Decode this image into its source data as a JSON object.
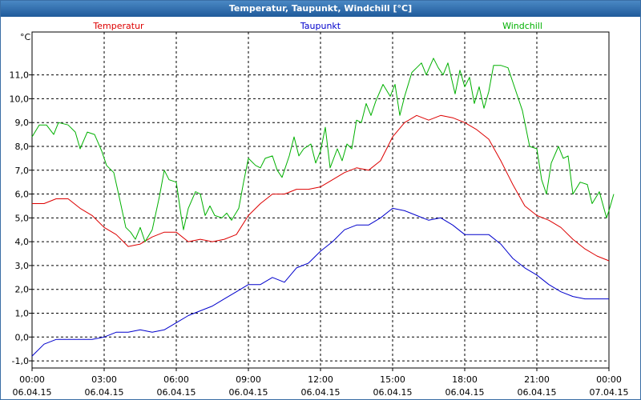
{
  "window": {
    "title": "Temperatur, Taupunkt, Windchill [°C]"
  },
  "chart_data": {
    "type": "line",
    "title": "Temperatur, Taupunkt, Windchill [°C]",
    "y_unit_label": "°C",
    "ylim": [
      -1.3,
      12.8
    ],
    "xlim": [
      0,
      24
    ],
    "grid": true,
    "legend_placement": "top",
    "y_ticks": [
      -1.0,
      0.0,
      1.0,
      2.0,
      3.0,
      4.0,
      5.0,
      6.0,
      7.0,
      8.0,
      9.0,
      10.0,
      11.0
    ],
    "y_tick_labels": [
      "-1,0",
      "0,0",
      "1,0",
      "2,0",
      "3,0",
      "4,0",
      "5,0",
      "6,0",
      "7,0",
      "8,0",
      "9,0",
      "10,0",
      "11,0"
    ],
    "x_ticks": [
      {
        "h": 0,
        "time": "00:00",
        "date": "06.04.15"
      },
      {
        "h": 3,
        "time": "03:00",
        "date": "06.04.15"
      },
      {
        "h": 6,
        "time": "06:00",
        "date": "06.04.15"
      },
      {
        "h": 9,
        "time": "09:00",
        "date": "06.04.15"
      },
      {
        "h": 12,
        "time": "12:00",
        "date": "06.04.15"
      },
      {
        "h": 15,
        "time": "15:00",
        "date": "06.04.15"
      },
      {
        "h": 18,
        "time": "18:00",
        "date": "06.04.15"
      },
      {
        "h": 21,
        "time": "21:00",
        "date": "06.04.15"
      },
      {
        "h": 24,
        "time": "00:00",
        "date": "07.04.15"
      }
    ],
    "series": [
      {
        "name": "Temperatur",
        "color": "#dd0000",
        "points": [
          [
            0,
            5.6
          ],
          [
            0.5,
            5.6
          ],
          [
            1,
            5.8
          ],
          [
            1.5,
            5.8
          ],
          [
            2,
            5.4
          ],
          [
            2.5,
            5.1
          ],
          [
            3,
            4.6
          ],
          [
            3.5,
            4.3
          ],
          [
            4,
            3.8
          ],
          [
            4.5,
            3.9
          ],
          [
            5,
            4.2
          ],
          [
            5.5,
            4.4
          ],
          [
            6,
            4.4
          ],
          [
            6.5,
            4.0
          ],
          [
            7,
            4.1
          ],
          [
            7.5,
            4.0
          ],
          [
            8,
            4.1
          ],
          [
            8.5,
            4.3
          ],
          [
            9,
            5.1
          ],
          [
            9.5,
            5.6
          ],
          [
            10,
            6.0
          ],
          [
            10.5,
            6.0
          ],
          [
            11,
            6.2
          ],
          [
            11.5,
            6.2
          ],
          [
            12,
            6.3
          ],
          [
            12.5,
            6.6
          ],
          [
            13,
            6.9
          ],
          [
            13.5,
            7.1
          ],
          [
            14,
            7.0
          ],
          [
            14.5,
            7.4
          ],
          [
            15,
            8.4
          ],
          [
            15.5,
            9.0
          ],
          [
            16,
            9.3
          ],
          [
            16.5,
            9.1
          ],
          [
            17,
            9.3
          ],
          [
            17.5,
            9.2
          ],
          [
            18,
            9.0
          ],
          [
            18.5,
            8.7
          ],
          [
            19,
            8.3
          ],
          [
            19.5,
            7.4
          ],
          [
            20,
            6.4
          ],
          [
            20.5,
            5.5
          ],
          [
            21,
            5.1
          ],
          [
            21.5,
            4.9
          ],
          [
            22,
            4.6
          ],
          [
            22.5,
            4.1
          ],
          [
            23,
            3.7
          ],
          [
            23.5,
            3.4
          ],
          [
            24,
            3.2
          ]
        ]
      },
      {
        "name": "Taupunkt",
        "color": "#0000cc",
        "points": [
          [
            0,
            -0.8
          ],
          [
            0.5,
            -0.3
          ],
          [
            1,
            -0.1
          ],
          [
            1.5,
            -0.1
          ],
          [
            2,
            -0.1
          ],
          [
            2.5,
            -0.1
          ],
          [
            3,
            0.0
          ],
          [
            3.5,
            0.2
          ],
          [
            4,
            0.2
          ],
          [
            4.5,
            0.3
          ],
          [
            5,
            0.2
          ],
          [
            5.5,
            0.3
          ],
          [
            6,
            0.6
          ],
          [
            6.5,
            0.9
          ],
          [
            7,
            1.1
          ],
          [
            7.5,
            1.3
          ],
          [
            8,
            1.6
          ],
          [
            8.5,
            1.9
          ],
          [
            9,
            2.2
          ],
          [
            9.5,
            2.2
          ],
          [
            10,
            2.5
          ],
          [
            10.5,
            2.3
          ],
          [
            11,
            2.9
          ],
          [
            11.5,
            3.1
          ],
          [
            12,
            3.6
          ],
          [
            12.5,
            4.0
          ],
          [
            13,
            4.5
          ],
          [
            13.5,
            4.7
          ],
          [
            14,
            4.7
          ],
          [
            14.5,
            5.0
          ],
          [
            15,
            5.4
          ],
          [
            15.5,
            5.3
          ],
          [
            16,
            5.1
          ],
          [
            16.5,
            4.9
          ],
          [
            17,
            5.0
          ],
          [
            17.5,
            4.7
          ],
          [
            18,
            4.3
          ],
          [
            18.5,
            4.3
          ],
          [
            19,
            4.3
          ],
          [
            19.5,
            3.9
          ],
          [
            20,
            3.3
          ],
          [
            20.5,
            2.9
          ],
          [
            21,
            2.6
          ],
          [
            21.5,
            2.2
          ],
          [
            22,
            1.9
          ],
          [
            22.5,
            1.7
          ],
          [
            23,
            1.6
          ],
          [
            23.5,
            1.6
          ],
          [
            24,
            1.6
          ]
        ]
      },
      {
        "name": "Windchill",
        "color": "#00b000",
        "points": [
          [
            0,
            8.4
          ],
          [
            0.3,
            8.9
          ],
          [
            0.6,
            8.9
          ],
          [
            0.9,
            8.5
          ],
          [
            1.1,
            9.0
          ],
          [
            1.5,
            8.9
          ],
          [
            1.8,
            8.6
          ],
          [
            2,
            7.9
          ],
          [
            2.3,
            8.6
          ],
          [
            2.6,
            8.5
          ],
          [
            2.9,
            7.8
          ],
          [
            3.1,
            7.2
          ],
          [
            3.4,
            6.9
          ],
          [
            3.6,
            6.0
          ],
          [
            3.9,
            4.6
          ],
          [
            4.1,
            4.4
          ],
          [
            4.3,
            4.1
          ],
          [
            4.5,
            4.6
          ],
          [
            4.7,
            4.0
          ],
          [
            5.0,
            4.5
          ],
          [
            5.3,
            5.9
          ],
          [
            5.5,
            7.0
          ],
          [
            5.7,
            6.6
          ],
          [
            6.0,
            6.5
          ],
          [
            6.2,
            5.1
          ],
          [
            6.3,
            4.5
          ],
          [
            6.5,
            5.4
          ],
          [
            6.8,
            6.1
          ],
          [
            7.0,
            6.0
          ],
          [
            7.2,
            5.1
          ],
          [
            7.4,
            5.5
          ],
          [
            7.6,
            5.1
          ],
          [
            7.9,
            5.0
          ],
          [
            8.1,
            5.2
          ],
          [
            8.3,
            4.9
          ],
          [
            8.6,
            5.4
          ],
          [
            8.8,
            6.5
          ],
          [
            9.0,
            7.5
          ],
          [
            9.3,
            7.2
          ],
          [
            9.5,
            7.1
          ],
          [
            9.7,
            7.5
          ],
          [
            10.0,
            7.6
          ],
          [
            10.2,
            7.0
          ],
          [
            10.4,
            6.7
          ],
          [
            10.7,
            7.6
          ],
          [
            10.9,
            8.4
          ],
          [
            11.1,
            7.6
          ],
          [
            11.3,
            7.9
          ],
          [
            11.6,
            8.1
          ],
          [
            11.8,
            7.3
          ],
          [
            12.0,
            7.8
          ],
          [
            12.2,
            8.8
          ],
          [
            12.4,
            7.1
          ],
          [
            12.7,
            7.9
          ],
          [
            12.9,
            7.4
          ],
          [
            13.1,
            8.1
          ],
          [
            13.3,
            7.9
          ],
          [
            13.5,
            9.1
          ],
          [
            13.7,
            9.0
          ],
          [
            13.9,
            9.8
          ],
          [
            14.1,
            9.3
          ],
          [
            14.3,
            9.9
          ],
          [
            14.6,
            10.6
          ],
          [
            14.9,
            10.1
          ],
          [
            15.1,
            10.6
          ],
          [
            15.3,
            9.3
          ],
          [
            15.5,
            10.1
          ],
          [
            15.8,
            11.1
          ],
          [
            16.0,
            11.3
          ],
          [
            16.2,
            11.5
          ],
          [
            16.4,
            11.0
          ],
          [
            16.7,
            11.7
          ],
          [
            16.9,
            11.3
          ],
          [
            17.1,
            11.0
          ],
          [
            17.3,
            11.5
          ],
          [
            17.6,
            10.2
          ],
          [
            17.8,
            11.2
          ],
          [
            18.0,
            10.5
          ],
          [
            18.2,
            10.9
          ],
          [
            18.4,
            9.8
          ],
          [
            18.6,
            10.5
          ],
          [
            18.8,
            9.6
          ],
          [
            19.0,
            10.3
          ],
          [
            19.2,
            11.4
          ],
          [
            19.5,
            11.4
          ],
          [
            19.8,
            11.3
          ],
          [
            20.1,
            10.4
          ],
          [
            20.4,
            9.5
          ],
          [
            20.7,
            8.0
          ],
          [
            21.0,
            7.9
          ],
          [
            21.2,
            6.6
          ],
          [
            21.4,
            6.0
          ],
          [
            21.6,
            7.3
          ],
          [
            21.9,
            8.0
          ],
          [
            22.1,
            7.5
          ],
          [
            22.3,
            7.6
          ],
          [
            22.5,
            6.0
          ],
          [
            22.8,
            6.5
          ],
          [
            23.1,
            6.4
          ],
          [
            23.3,
            5.6
          ],
          [
            23.6,
            6.1
          ],
          [
            23.9,
            5.0
          ],
          [
            24.0,
            5.3
          ],
          [
            24.2,
            6.0
          ]
        ]
      }
    ]
  }
}
